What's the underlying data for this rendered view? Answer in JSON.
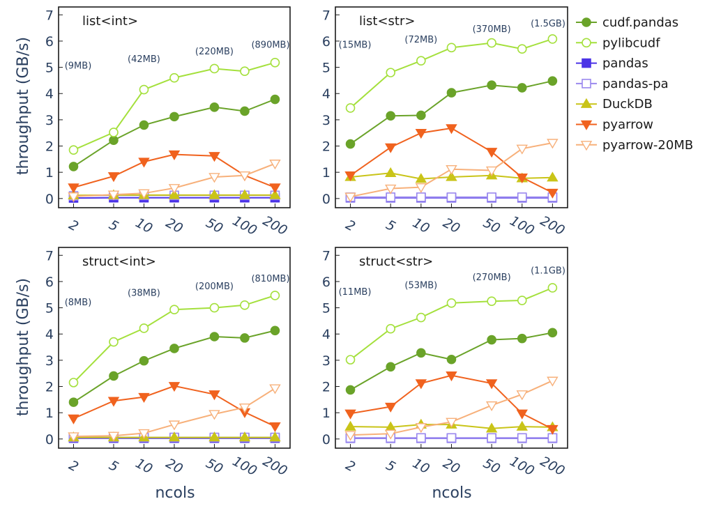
{
  "chart_data": {
    "type": "line",
    "y_axis_title": "throughput (GB/s)",
    "x_axis_title": "ncols",
    "x": [
      2,
      5,
      10,
      20,
      50,
      100,
      200
    ],
    "x_tick_labels": [
      "2",
      "5",
      "10",
      "20",
      "50",
      "100",
      "200"
    ],
    "yticks": [
      0,
      1,
      2,
      3,
      4,
      5,
      6,
      7
    ],
    "ylim": [
      -0.35,
      7.3
    ],
    "legend": [
      {
        "name": "cudf.pandas",
        "color": "#6aa329",
        "marker": "filled-circle"
      },
      {
        "name": "pylibcudf",
        "color": "#a4e03c",
        "marker": "open-circle"
      },
      {
        "name": "pandas",
        "color": "#4b33e6",
        "marker": "filled-square"
      },
      {
        "name": "pandas-pa",
        "color": "#9a88ee",
        "marker": "open-square"
      },
      {
        "name": "DuckDB",
        "color": "#c9c418",
        "marker": "filled-triangle-up"
      },
      {
        "name": "pyarrow",
        "color": "#f0621e",
        "marker": "filled-triangle-down"
      },
      {
        "name": "pyarrow-20MB",
        "color": "#f7b07a",
        "marker": "open-triangle-down"
      }
    ],
    "panels": [
      {
        "title": "list<int>",
        "annotations": [
          {
            "x": 2,
            "y": 4.95,
            "text": "(9MB)"
          },
          {
            "x": 10,
            "y": 5.2,
            "text": "(42MB)"
          },
          {
            "x": 50,
            "y": 5.5,
            "text": "(220MB)"
          },
          {
            "x": 200,
            "y": 5.75,
            "text": "(890MB)"
          }
        ],
        "series": [
          {
            "name": "cudf.pandas",
            "values": [
              1.22,
              2.22,
              2.8,
              3.12,
              3.48,
              3.33,
              3.78
            ]
          },
          {
            "name": "pylibcudf",
            "values": [
              1.85,
              2.52,
              4.15,
              4.6,
              4.95,
              4.85,
              5.18
            ]
          },
          {
            "name": "pandas",
            "values": [
              0.02,
              0.03,
              0.03,
              0.03,
              0.03,
              0.03,
              0.03
            ]
          },
          {
            "name": "pandas-pa",
            "values": [
              0.1,
              0.12,
              0.12,
              0.12,
              0.12,
              0.12,
              0.12
            ]
          },
          {
            "name": "DuckDB",
            "values": [
              0.12,
              0.13,
              0.13,
              0.13,
              0.13,
              0.13,
              0.13
            ]
          },
          {
            "name": "pyarrow",
            "values": [
              0.42,
              0.85,
              1.4,
              1.68,
              1.62,
              0.88,
              0.42
            ]
          },
          {
            "name": "pyarrow-20MB",
            "values": [
              0.08,
              0.15,
              0.2,
              0.4,
              0.82,
              0.88,
              1.33
            ]
          }
        ]
      },
      {
        "title": "list<str>",
        "annotations": [
          {
            "x": 2,
            "y": 5.75,
            "text": "(15MB)"
          },
          {
            "x": 10,
            "y": 5.95,
            "text": "(72MB)"
          },
          {
            "x": 50,
            "y": 6.35,
            "text": "(370MB)"
          },
          {
            "x": 200,
            "y": 6.55,
            "text": "(1.5GB)"
          }
        ],
        "series": [
          {
            "name": "cudf.pandas",
            "values": [
              2.08,
              3.15,
              3.17,
              4.03,
              4.32,
              4.22,
              4.48
            ]
          },
          {
            "name": "pylibcudf",
            "values": [
              3.45,
              4.8,
              5.25,
              5.75,
              5.93,
              5.7,
              6.08
            ]
          },
          {
            "name": "pandas",
            "values": [
              0.03,
              0.03,
              0.03,
              0.03,
              0.03,
              0.03,
              0.03
            ]
          },
          {
            "name": "pandas-pa",
            "values": [
              0.05,
              0.05,
              0.05,
              0.05,
              0.05,
              0.05,
              0.05
            ]
          },
          {
            "name": "DuckDB",
            "values": [
              0.82,
              0.97,
              0.75,
              0.82,
              0.88,
              0.77,
              0.8
            ]
          },
          {
            "name": "pyarrow",
            "values": [
              0.88,
              1.95,
              2.5,
              2.68,
              1.78,
              0.8,
              0.22
            ]
          },
          {
            "name": "pyarrow-20MB",
            "values": [
              0.07,
              0.38,
              0.43,
              1.12,
              1.07,
              1.9,
              2.12
            ]
          }
        ]
      },
      {
        "title": "struct<int>",
        "annotations": [
          {
            "x": 2,
            "y": 5.1,
            "text": "(8MB)"
          },
          {
            "x": 10,
            "y": 5.45,
            "text": "(38MB)"
          },
          {
            "x": 50,
            "y": 5.7,
            "text": "(200MB)"
          },
          {
            "x": 200,
            "y": 6.0,
            "text": "(810MB)"
          }
        ],
        "series": [
          {
            "name": "cudf.pandas",
            "values": [
              1.4,
              2.4,
              2.98,
              3.45,
              3.9,
              3.85,
              4.13
            ]
          },
          {
            "name": "pylibcudf",
            "values": [
              2.15,
              3.7,
              4.22,
              4.93,
              5.0,
              5.1,
              5.47
            ]
          },
          {
            "name": "pandas",
            "values": [
              0.03,
              0.03,
              0.03,
              0.03,
              0.03,
              0.03,
              0.03
            ]
          },
          {
            "name": "pandas-pa",
            "values": [
              0.06,
              0.06,
              0.06,
              0.06,
              0.06,
              0.06,
              0.06
            ]
          },
          {
            "name": "DuckDB",
            "values": [
              0.06,
              0.06,
              0.06,
              0.06,
              0.06,
              0.06,
              0.06
            ]
          },
          {
            "name": "pyarrow",
            "values": [
              0.78,
              1.45,
              1.6,
              2.02,
              1.7,
              1.02,
              0.48
            ]
          },
          {
            "name": "pyarrow-20MB",
            "values": [
              0.1,
              0.12,
              0.22,
              0.55,
              0.95,
              1.2,
              1.93
            ]
          }
        ]
      },
      {
        "title": "struct<str>",
        "annotations": [
          {
            "x": 2,
            "y": 5.5,
            "text": "(11MB)"
          },
          {
            "x": 10,
            "y": 5.75,
            "text": "(53MB)"
          },
          {
            "x": 50,
            "y": 6.05,
            "text": "(270MB)"
          },
          {
            "x": 200,
            "y": 6.3,
            "text": "(1.1GB)"
          }
        ],
        "series": [
          {
            "name": "cudf.pandas",
            "values": [
              1.87,
              2.75,
              3.28,
              3.03,
              3.78,
              3.83,
              4.05
            ]
          },
          {
            "name": "pylibcudf",
            "values": [
              3.02,
              4.2,
              4.63,
              5.18,
              5.25,
              5.28,
              5.76
            ]
          },
          {
            "name": "pandas",
            "values": [
              0.03,
              0.03,
              0.03,
              0.03,
              0.03,
              0.03,
              0.03
            ]
          },
          {
            "name": "pandas-pa",
            "values": [
              0.04,
              0.04,
              0.04,
              0.04,
              0.04,
              0.04,
              0.04
            ]
          },
          {
            "name": "DuckDB",
            "values": [
              0.47,
              0.45,
              0.55,
              0.55,
              0.4,
              0.47,
              0.45
            ]
          },
          {
            "name": "pyarrow",
            "values": [
              0.97,
              1.23,
              2.12,
              2.42,
              2.12,
              0.97,
              0.38
            ]
          },
          {
            "name": "pyarrow-20MB",
            "values": [
              0.15,
              0.2,
              0.45,
              0.65,
              1.28,
              1.7,
              2.22
            ]
          }
        ]
      }
    ]
  }
}
